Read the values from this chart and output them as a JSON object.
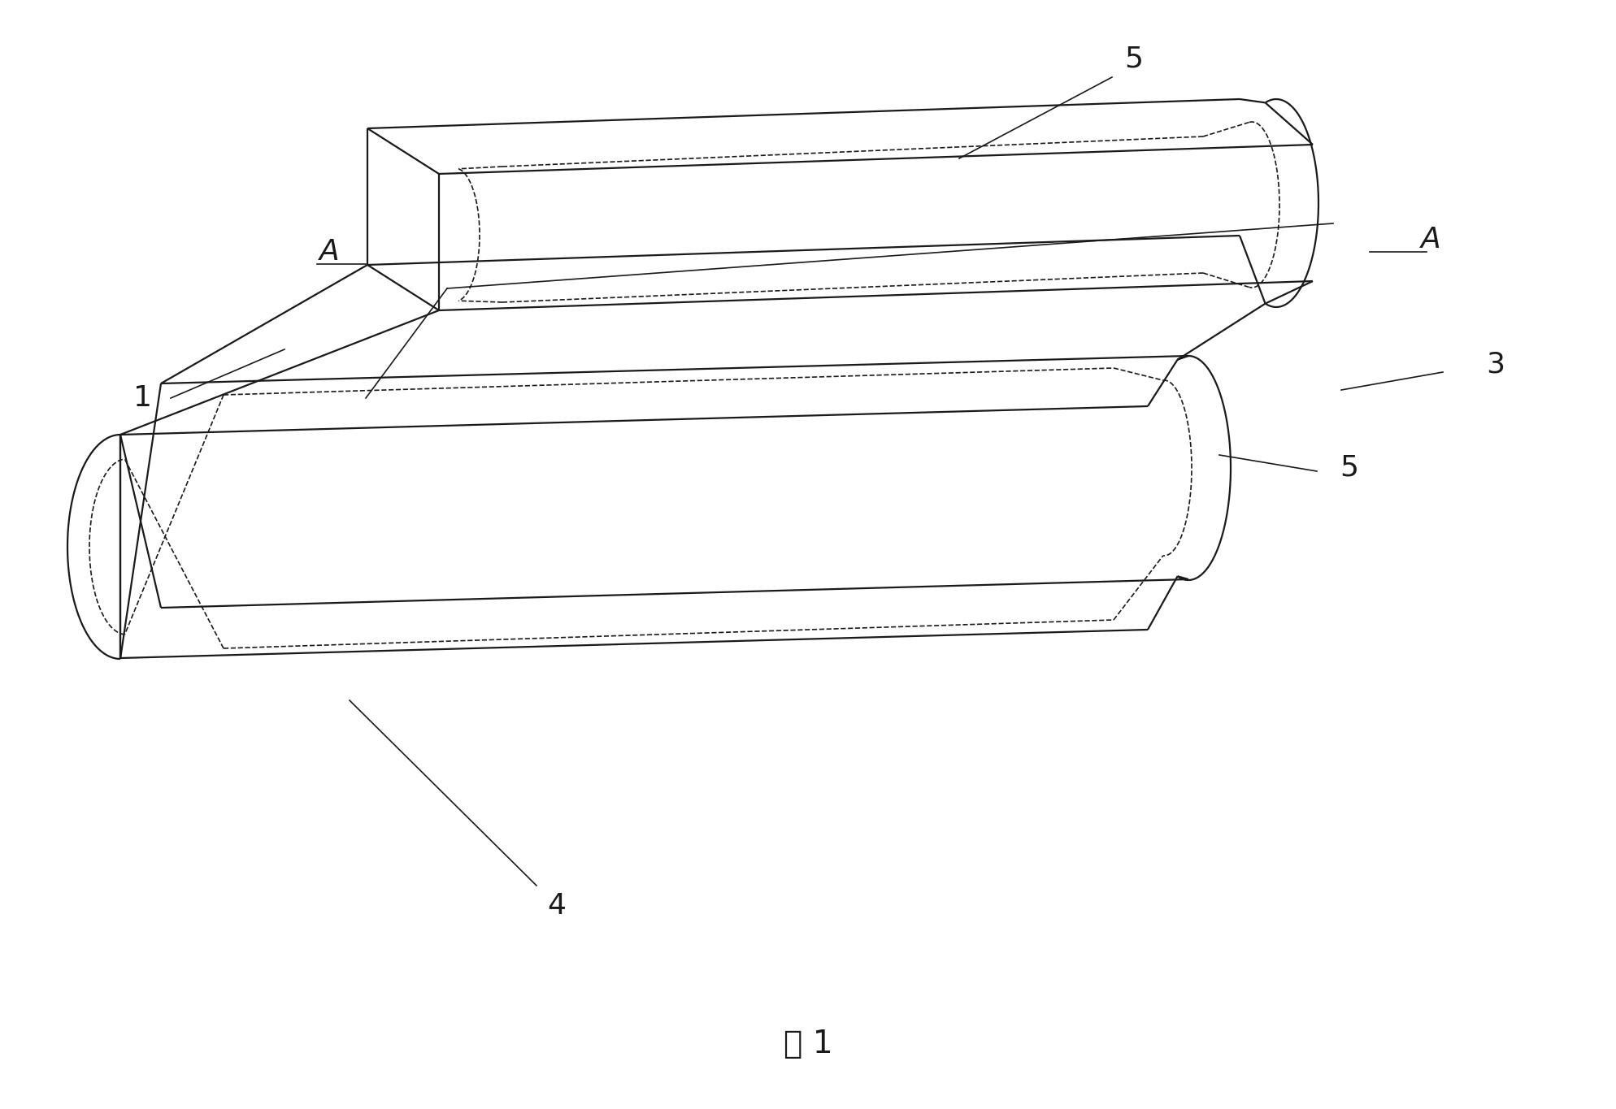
{
  "bg_color": "#ffffff",
  "line_color": "#1a1a1a",
  "fig_label": "图 1",
  "figsize": [
    19.88,
    13.65
  ],
  "dpi": 100,
  "lw_outer": 1.6,
  "lw_inner": 1.2,
  "lw_leader": 1.2,
  "fs_label": 26,
  "fs_caption": 28
}
